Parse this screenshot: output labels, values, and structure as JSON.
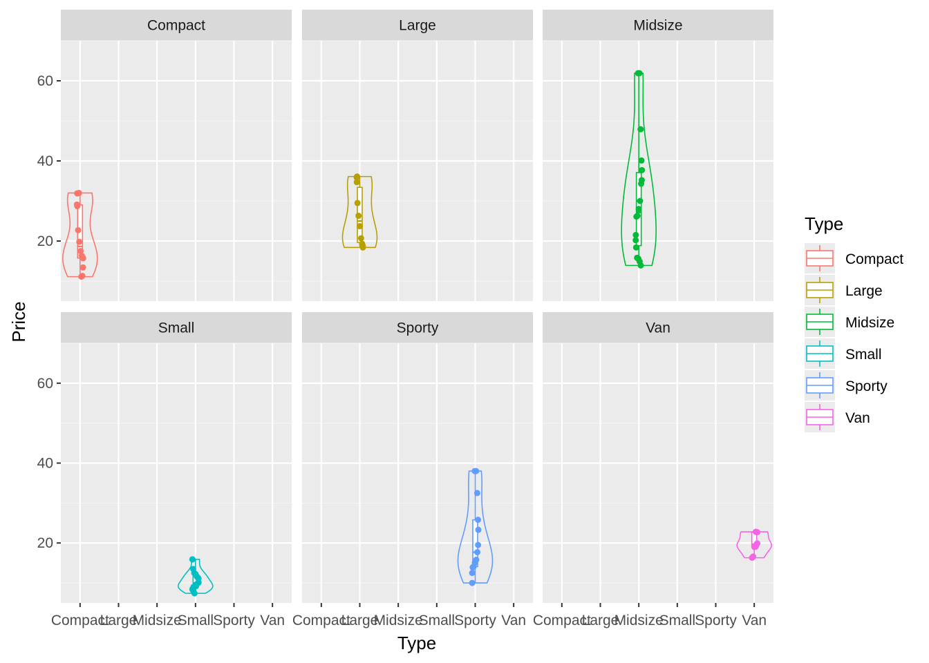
{
  "chart_data": {
    "type": "violin",
    "xlabel": "Type",
    "ylabel": "Price",
    "categories": [
      "Compact",
      "Large",
      "Midsize",
      "Small",
      "Sporty",
      "Van"
    ],
    "ylim": [
      5,
      70
    ],
    "yticks": [
      20,
      40,
      60
    ],
    "grid": true,
    "facets": [
      {
        "label": "Compact",
        "color": "#F8766D",
        "points": [
          11.1,
          11.3,
          13.4,
          15.7,
          15.9,
          16.3,
          17.5,
          19.8,
          22.7,
          28.7,
          29.1,
          31.9,
          31.9,
          32.0
        ]
      },
      {
        "label": "Large",
        "color": "#B79F00",
        "points": [
          18.4,
          18.8,
          19.3,
          20.7,
          23.7,
          26.3,
          29.5,
          34.7,
          35.9,
          36.1
        ]
      },
      {
        "label": "Midsize",
        "color": "#00BA38",
        "points": [
          13.9,
          14.9,
          15.6,
          15.8,
          18.4,
          20.2,
          21.5,
          26.1,
          26.3,
          28.0,
          30.0,
          34.3,
          35.2,
          37.7,
          40.1,
          47.9,
          61.9,
          61.9
        ]
      },
      {
        "label": "Small",
        "color": "#00BFC4",
        "points": [
          7.4,
          8.0,
          8.3,
          8.4,
          8.6,
          9.0,
          9.1,
          9.2,
          9.8,
          10.0,
          10.1,
          11.1,
          11.3,
          11.6,
          12.2,
          12.5,
          13.5,
          15.9,
          15.9
        ]
      },
      {
        "label": "Sporty",
        "color": "#619CFF",
        "points": [
          10.0,
          12.5,
          13.9,
          14.1,
          15.1,
          15.8,
          17.7,
          19.5,
          23.3,
          25.8,
          32.5,
          38.0,
          38.0
        ]
      },
      {
        "label": "Van",
        "color": "#F564E3",
        "points": [
          16.3,
          16.6,
          19.0,
          19.1,
          19.7,
          19.9,
          22.7,
          22.7,
          22.8
        ]
      }
    ],
    "legend": {
      "title": "Type",
      "position": "right",
      "entries": [
        "Compact",
        "Large",
        "Midsize",
        "Small",
        "Sporty",
        "Van"
      ]
    }
  }
}
